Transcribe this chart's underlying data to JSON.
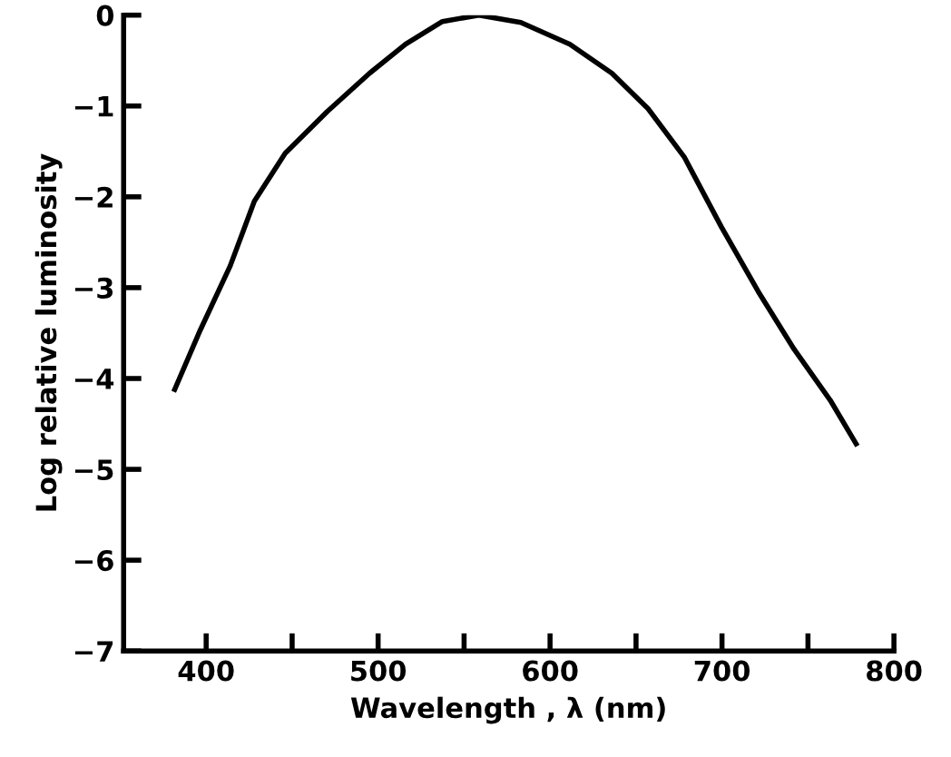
{
  "chart_data": {
    "type": "line",
    "xlabel": "Wavelength , λ (nm)",
    "ylabel": "Log relative luminosity",
    "x": [
      381.7,
      396.5,
      414,
      428,
      446,
      470.5,
      495,
      516,
      537.4,
      558.6,
      583,
      611.5,
      636,
      657,
      678,
      699.6,
      721,
      742,
      763,
      778
    ],
    "series": [
      {
        "color": "#000000",
        "values": [
          -4.12,
          -3.47,
          -2.76,
          -2.05,
          -1.52,
          -1.06,
          -0.64,
          -0.32,
          -0.07,
          0,
          -0.08,
          -0.32,
          -0.64,
          -1.03,
          -1.56,
          -2.33,
          -3.04,
          -3.68,
          -4.24,
          -4.72
        ]
      }
    ],
    "xlim": [
      352,
      800
    ],
    "ylim": [
      -7,
      0
    ],
    "xticks": [
      400,
      {
        "value": 450,
        "label": null
      },
      500,
      {
        "value": 550,
        "label": null
      },
      600,
      {
        "value": 650,
        "label": null
      },
      700,
      {
        "value": 750,
        "label": null
      },
      800
    ],
    "yticks": [
      -7,
      -6,
      -5,
      -4,
      -3,
      -2,
      -1,
      0
    ],
    "grid": false,
    "legend": false,
    "marker": "none",
    "line_style": "solid"
  }
}
